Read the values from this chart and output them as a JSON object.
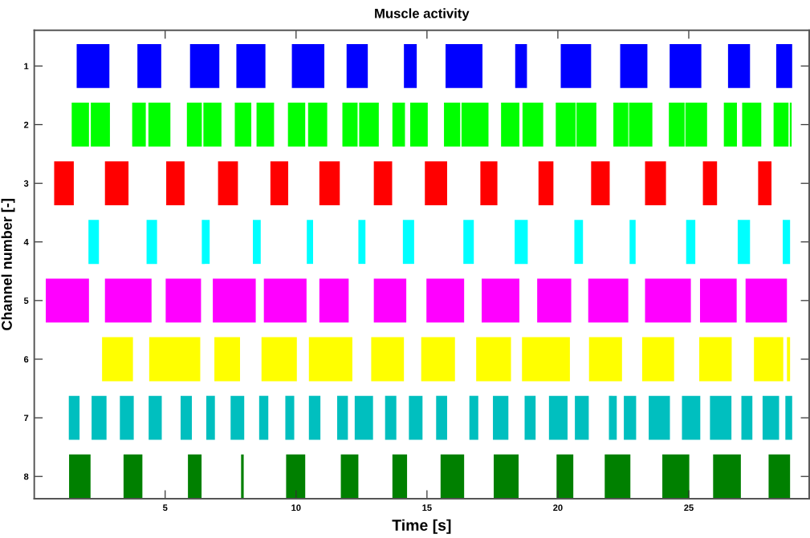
{
  "chart_data": {
    "type": "bar",
    "orientation": "horizontal",
    "title": "Muscle activity",
    "xlabel": "Time [s]",
    "ylabel": "Channel number [-]",
    "categories": [
      "1",
      "2",
      "3",
      "4",
      "5",
      "6",
      "7",
      "8"
    ],
    "xlim": [
      0,
      29.6
    ],
    "xticks": [
      5,
      10,
      15,
      20,
      25
    ],
    "series": [
      {
        "colors": [
          "#0000ff",
          "#00ff00",
          "#ff0000",
          "#00ffff",
          "#ff00ff",
          "#ffff00",
          "#00bfbf",
          "#008000"
        ],
        "base": [
          1.62,
          1.43,
          0.76,
          2.07,
          0.44,
          2.59,
          1.32,
          1.33
        ],
        "values": [
          1.25,
          0.66,
          0.75,
          0.4,
          1.65,
          1.18,
          0.41,
          0.82
        ]
      },
      {
        "colors": [
          "#0000ff",
          "#00ff00",
          "#ff0000",
          "#00ffff",
          "#ff00ff",
          "#ffff00",
          "#00bfbf",
          "#008000"
        ],
        "base": [
          3.94,
          2.16,
          2.7,
          4.29,
          2.7,
          4.39,
          2.19,
          3.41
        ],
        "values": [
          0.91,
          0.73,
          0.9,
          0.4,
          1.78,
          1.95,
          0.57,
          0.72
        ]
      },
      {
        "colors": [
          "#0000ff",
          "#00ff00",
          "#ff0000",
          "#00ffff",
          "#ff00ff",
          "#ffff00",
          "#00bfbf",
          "#008000"
        ],
        "base": [
          5.95,
          3.74,
          5.04,
          6.4,
          5.02,
          6.88,
          3.27,
          5.87
        ],
        "values": [
          1.12,
          0.52,
          0.7,
          0.3,
          1.35,
          0.98,
          0.53,
          0.52
        ]
      },
      {
        "colors": [
          "#0000ff",
          "#00ff00",
          "#ff0000",
          "#00ffff",
          "#ff00ff",
          "#ffff00",
          "#00bfbf",
          "#008000"
        ],
        "base": [
          7.72,
          4.36,
          7.02,
          8.35,
          6.82,
          8.68,
          4.37,
          7.9
        ],
        "values": [
          1.11,
          0.84,
          0.76,
          0.3,
          1.64,
          1.35,
          0.5,
          0.1
        ]
      },
      {
        "colors": [
          "#0000ff",
          "#00ff00",
          "#ff0000",
          "#00ffff",
          "#ff00ff",
          "#ffff00",
          "#00bfbf",
          "#008000"
        ],
        "base": [
          9.84,
          5.83,
          9.02,
          10.41,
          8.77,
          10.49,
          5.59,
          9.62
        ],
        "values": [
          1.24,
          0.57,
          0.68,
          0.24,
          1.63,
          1.66,
          0.43,
          0.73
        ]
      },
      {
        "colors": [
          "#0000ff",
          "#00ff00",
          "#ff0000",
          "#00ffff",
          "#ff00ff",
          "#ffff00",
          "#00bfbf",
          "#008000"
        ],
        "base": [
          11.93,
          6.46,
          10.89,
          12.38,
          10.89,
          12.87,
          6.57,
          11.71
        ],
        "values": [
          0.81,
          0.69,
          0.78,
          0.27,
          1.12,
          1.25,
          0.33,
          0.67
        ]
      },
      {
        "colors": [
          "#0000ff",
          "#00ff00",
          "#ff0000",
          "#00ffff",
          "#ff00ff",
          "#ffff00",
          "#00bfbf",
          "#008000"
        ],
        "base": [
          14.12,
          7.66,
          12.97,
          14.08,
          12.97,
          14.78,
          7.5,
          13.68
        ],
        "values": [
          0.49,
          0.63,
          0.7,
          0.43,
          1.24,
          1.29,
          0.52,
          0.56
        ]
      },
      {
        "colors": [
          "#0000ff",
          "#00ff00",
          "#ff0000",
          "#00ffff",
          "#ff00ff",
          "#ffff00",
          "#00bfbf",
          "#008000"
        ],
        "base": [
          15.71,
          8.49,
          14.92,
          16.39,
          14.98,
          16.88,
          8.59,
          15.52
        ],
        "values": [
          1.41,
          0.67,
          0.85,
          0.4,
          1.44,
          1.33,
          0.35,
          0.9
        ]
      },
      {
        "colors": [
          "#0000ff",
          "#00ff00",
          "#ff0000",
          "#00ffff",
          "#ff00ff",
          "#ffff00",
          "#00bfbf",
          "#008000"
        ],
        "base": [
          18.37,
          9.69,
          17.04,
          18.35,
          17.09,
          18.63,
          9.59,
          17.55
        ],
        "values": [
          0.45,
          0.66,
          0.65,
          0.5,
          1.44,
          1.83,
          0.34,
          0.95
        ]
      },
      {
        "colors": [
          "#0000ff",
          "#00ff00",
          "#ff0000",
          "#00ffff",
          "#ff00ff",
          "#ffff00",
          "#00bfbf",
          "#008000"
        ],
        "base": [
          20.11,
          10.46,
          19.26,
          20.63,
          19.21,
          21.19,
          10.49,
          19.95
        ],
        "values": [
          1.16,
          0.73,
          0.57,
          0.33,
          1.3,
          1.26,
          0.44,
          0.64
        ]
      },
      {
        "colors": [
          "#0000ff",
          "#00ff00",
          "#ff0000",
          "#00ffff",
          "#ff00ff",
          "#ffff00",
          "#00bfbf",
          "#008000"
        ],
        "base": [
          22.38,
          11.77,
          21.27,
          22.74,
          21.16,
          23.22,
          11.57,
          21.79
        ],
        "values": [
          1.04,
          0.58,
          0.71,
          0.23,
          1.53,
          1.22,
          0.41,
          0.98
        ]
      },
      {
        "colors": [
          "#0000ff",
          "#00ff00",
          "#ff0000",
          "#00ffff",
          "#ff00ff",
          "#ffff00",
          "#00bfbf",
          "#008000"
        ],
        "base": [
          24.27,
          12.41,
          23.33,
          24.9,
          23.33,
          25.4,
          12.24,
          23.99
        ],
        "values": [
          1.21,
          0.75,
          0.8,
          0.35,
          1.75,
          1.24,
          0.7,
          1.03
        ]
      },
      {
        "colors": [
          "#0000ff",
          "#00ff00",
          "#ff0000",
          "#00ffff",
          "#ff00ff",
          "#ffff00",
          "#00bfbf",
          "#008000"
        ],
        "base": [
          26.5,
          13.68,
          25.54,
          26.87,
          25.43,
          27.49,
          13.4,
          25.93
        ],
        "values": [
          0.84,
          0.48,
          0.54,
          0.47,
          1.4,
          1.12,
          0.43,
          1.06
        ]
      },
      {
        "colors": [
          "#0000ff",
          "#00ff00",
          "#ff0000",
          "#00ffff",
          "#ff00ff",
          "#ffff00",
          "#00bfbf",
          "#008000"
        ],
        "base": [
          28.34,
          14.36,
          27.65,
          28.59,
          27.17,
          28.75,
          14.31,
          28.05
        ],
        "values": [
          0.61,
          0.67,
          0.51,
          0.28,
          1.58,
          0.12,
          0.52,
          0.82
        ]
      },
      {
        "colors": [
          null,
          "#00ff00",
          null,
          null,
          null,
          null,
          "#00bfbf",
          null
        ],
        "base": [
          null,
          15.65,
          null,
          null,
          null,
          null,
          15.35,
          null
        ],
        "values": [
          null,
          0.62,
          null,
          null,
          null,
          null,
          0.42,
          null
        ]
      },
      {
        "colors": [
          null,
          "#00ff00",
          null,
          null,
          null,
          null,
          "#00bfbf",
          null
        ],
        "base": [
          null,
          16.32,
          null,
          null,
          null,
          null,
          16.62,
          null
        ],
        "values": [
          null,
          1.03,
          null,
          null,
          null,
          null,
          0.34,
          null
        ]
      },
      {
        "colors": [
          null,
          "#00ff00",
          null,
          null,
          null,
          null,
          "#00bfbf",
          null
        ],
        "base": [
          null,
          17.83,
          null,
          null,
          null,
          null,
          17.52,
          null
        ],
        "values": [
          null,
          0.7,
          null,
          null,
          null,
          null,
          0.59,
          null
        ]
      },
      {
        "colors": [
          null,
          "#00ff00",
          null,
          null,
          null,
          null,
          "#00bfbf",
          null
        ],
        "base": [
          null,
          18.65,
          null,
          null,
          null,
          null,
          18.73,
          null
        ],
        "values": [
          null,
          0.79,
          null,
          null,
          null,
          null,
          0.42,
          null
        ]
      },
      {
        "colors": [
          null,
          "#00ff00",
          null,
          null,
          null,
          null,
          "#00bfbf",
          null
        ],
        "base": [
          null,
          19.92,
          null,
          null,
          null,
          null,
          19.66,
          null
        ],
        "values": [
          null,
          0.76,
          null,
          null,
          null,
          null,
          0.71,
          null
        ]
      },
      {
        "colors": [
          null,
          "#00ff00",
          null,
          null,
          null,
          null,
          "#00bfbf",
          null
        ],
        "base": [
          null,
          20.71,
          null,
          null,
          null,
          null,
          20.65,
          null
        ],
        "values": [
          null,
          0.76,
          null,
          null,
          null,
          null,
          0.53,
          null
        ]
      },
      {
        "colors": [
          null,
          "#00ff00",
          null,
          null,
          null,
          null,
          "#00bfbf",
          null
        ],
        "base": [
          null,
          22.12,
          null,
          null,
          null,
          null,
          21.95,
          null
        ],
        "values": [
          null,
          0.57,
          null,
          null,
          null,
          null,
          0.3,
          null
        ]
      },
      {
        "colors": [
          null,
          "#00ff00",
          null,
          null,
          null,
          null,
          "#00bfbf",
          null
        ],
        "base": [
          null,
          22.72,
          null,
          null,
          null,
          null,
          22.52,
          null
        ],
        "values": [
          null,
          0.89,
          null,
          null,
          null,
          null,
          0.47,
          null
        ]
      },
      {
        "colors": [
          null,
          "#00ff00",
          null,
          null,
          null,
          null,
          "#00bfbf",
          null
        ],
        "base": [
          null,
          24.24,
          null,
          null,
          null,
          null,
          23.47,
          null
        ],
        "values": [
          null,
          0.6,
          null,
          null,
          null,
          null,
          0.81,
          null
        ]
      },
      {
        "colors": [
          null,
          "#00ff00",
          null,
          null,
          null,
          null,
          "#00bfbf",
          null
        ],
        "base": [
          null,
          24.87,
          null,
          null,
          null,
          null,
          24.74,
          null
        ],
        "values": [
          null,
          0.83,
          null,
          null,
          null,
          null,
          0.7,
          null
        ]
      },
      {
        "colors": [
          null,
          "#00ff00",
          null,
          null,
          null,
          null,
          "#00bfbf",
          null
        ],
        "base": [
          null,
          26.34,
          null,
          null,
          null,
          null,
          25.81,
          null
        ],
        "values": [
          null,
          0.5,
          null,
          null,
          null,
          null,
          0.82,
          null
        ]
      },
      {
        "colors": [
          null,
          "#00ff00",
          null,
          null,
          null,
          null,
          "#00bfbf",
          null
        ],
        "base": [
          null,
          27.04,
          null,
          null,
          null,
          null,
          27.01,
          null
        ],
        "values": [
          null,
          0.73,
          null,
          null,
          null,
          null,
          0.42,
          null
        ]
      },
      {
        "colors": [
          null,
          "#00ff00",
          null,
          null,
          null,
          null,
          "#00bfbf",
          null
        ],
        "base": [
          null,
          28.24,
          null,
          null,
          null,
          null,
          27.82,
          null
        ],
        "values": [
          null,
          0.57,
          null,
          null,
          null,
          null,
          0.63,
          null
        ]
      },
      {
        "colors": [
          null,
          "#00ff00",
          null,
          null,
          null,
          null,
          "#00bfbf",
          null
        ],
        "base": [
          null,
          28.86,
          null,
          null,
          null,
          null,
          28.69,
          null
        ],
        "values": [
          null,
          0.07,
          null,
          null,
          null,
          null,
          0.26,
          null
        ]
      }
    ]
  }
}
